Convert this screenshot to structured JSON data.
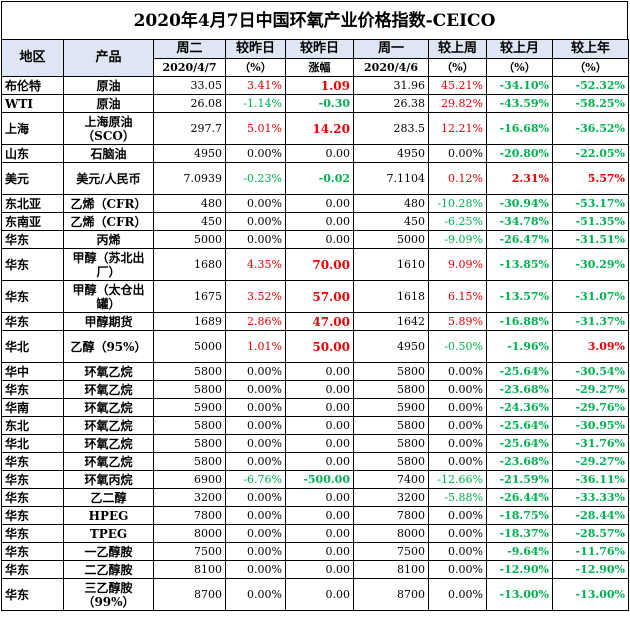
{
  "title": "2020年4月7日中国环氧产业价格指数-CEICO",
  "headers": {
    "region": "地区",
    "product": "产品",
    "today": "周二",
    "today_date": "2020/4/7",
    "chg_pct": "较昨日",
    "chg_pct_unit": "（%）",
    "chg_amt": "较昨日",
    "chg_amt_unit": "涨幅",
    "prev": "周一",
    "prev_date": "2020/4/6",
    "wk": "较上周",
    "wk_unit": "（%）",
    "mo": "较上月",
    "mo_unit": "（%）",
    "yr": "较上年",
    "yr_unit": "（%）"
  },
  "rows": [
    {
      "region": "布伦特",
      "product": "原油",
      "today": "33.05",
      "chg_pct": "3.41%",
      "chg_amt": "1.09",
      "prev": "31.96",
      "wk": "45.21%",
      "mo": "-34.10%",
      "yr": "-52.32%",
      "tall": false
    },
    {
      "region": "WTI",
      "product": "原油",
      "today": "26.08",
      "chg_pct": "-1.14%",
      "chg_amt": "-0.30",
      "prev": "26.38",
      "wk": "29.82%",
      "mo": "-43.59%",
      "yr": "-58.25%",
      "tall": false
    },
    {
      "region": "上海",
      "product": "上海原油（SCO）",
      "today": "297.7",
      "chg_pct": "5.01%",
      "chg_amt": "14.20",
      "prev": "283.5",
      "wk": "12.21%",
      "mo": "-16.68%",
      "yr": "-36.52%",
      "tall": true
    },
    {
      "region": "山东",
      "product": "石脑油",
      "today": "4950",
      "chg_pct": "0.00%",
      "chg_amt": "0.00",
      "prev": "4950",
      "wk": "0.00%",
      "mo": "-20.80%",
      "yr": "-22.05%",
      "tall": false
    },
    {
      "region": "美元",
      "product": "美元/人民币",
      "today": "7.0939",
      "chg_pct": "-0.23%",
      "chg_amt": "-0.02",
      "prev": "7.1104",
      "wk": "0.12%",
      "mo": "2.31%",
      "yr": "5.57%",
      "tall": true
    },
    {
      "region": "东北亚",
      "product": "乙烯（CFR）",
      "today": "480",
      "chg_pct": "0.00%",
      "chg_amt": "0.00",
      "prev": "480",
      "wk": "-10.28%",
      "mo": "-30.94%",
      "yr": "-53.17%",
      "tall": false
    },
    {
      "region": "东南亚",
      "product": "乙烯（CFR）",
      "today": "450",
      "chg_pct": "0.00%",
      "chg_amt": "0.00",
      "prev": "450",
      "wk": "-6.25%",
      "mo": "-34.78%",
      "yr": "-51.35%",
      "tall": false
    },
    {
      "region": "华东",
      "product": "丙烯",
      "today": "5000",
      "chg_pct": "0.00%",
      "chg_amt": "0.00",
      "prev": "5000",
      "wk": "-9.09%",
      "mo": "-26.47%",
      "yr": "-31.51%",
      "tall": false
    },
    {
      "region": "华东",
      "product": "甲醇（苏北出厂）",
      "today": "1680",
      "chg_pct": "4.35%",
      "chg_amt": "70.00",
      "prev": "1610",
      "wk": "9.09%",
      "mo": "-13.85%",
      "yr": "-30.29%",
      "tall": true
    },
    {
      "region": "华东",
      "product": "甲醇（太仓出罐）",
      "today": "1675",
      "chg_pct": "3.52%",
      "chg_amt": "57.00",
      "prev": "1618",
      "wk": "6.15%",
      "mo": "-13.57%",
      "yr": "-31.07%",
      "tall": true
    },
    {
      "region": "华东",
      "product": "甲醇期货",
      "today": "1689",
      "chg_pct": "2.86%",
      "chg_amt": "47.00",
      "prev": "1642",
      "wk": "5.89%",
      "mo": "-16.88%",
      "yr": "-31.37%",
      "tall": false
    },
    {
      "region": "华北",
      "product": "乙醇（95%）",
      "today": "5000",
      "chg_pct": "1.01%",
      "chg_amt": "50.00",
      "prev": "4950",
      "wk": "-0.50%",
      "mo": "-1.96%",
      "yr": "3.09%",
      "tall": true
    },
    {
      "region": "华中",
      "product": "环氧乙烷",
      "today": "5800",
      "chg_pct": "0.00%",
      "chg_amt": "0.00",
      "prev": "5800",
      "wk": "0.00%",
      "mo": "-25.64%",
      "yr": "-30.54%",
      "tall": false
    },
    {
      "region": "华东",
      "product": "环氧乙烷",
      "today": "5800",
      "chg_pct": "0.00%",
      "chg_amt": "0.00",
      "prev": "5800",
      "wk": "0.00%",
      "mo": "-23.68%",
      "yr": "-29.27%",
      "tall": false
    },
    {
      "region": "华南",
      "product": "环氧乙烷",
      "today": "5900",
      "chg_pct": "0.00%",
      "chg_amt": "0.00",
      "prev": "5900",
      "wk": "0.00%",
      "mo": "-24.36%",
      "yr": "-29.76%",
      "tall": false
    },
    {
      "region": "东北",
      "product": "环氧乙烷",
      "today": "5800",
      "chg_pct": "0.00%",
      "chg_amt": "0.00",
      "prev": "5800",
      "wk": "0.00%",
      "mo": "-25.64%",
      "yr": "-30.95%",
      "tall": false
    },
    {
      "region": "华北",
      "product": "环氧乙烷",
      "today": "5800",
      "chg_pct": "0.00%",
      "chg_amt": "0.00",
      "prev": "5800",
      "wk": "0.00%",
      "mo": "-25.64%",
      "yr": "-31.76%",
      "tall": false
    },
    {
      "region": "华东",
      "product": "环氧乙烷",
      "today": "5800",
      "chg_pct": "0.00%",
      "chg_amt": "0.00",
      "prev": "5800",
      "wk": "0.00%",
      "mo": "-23.68%",
      "yr": "-29.27%",
      "tall": false
    },
    {
      "region": "华东",
      "product": "环氧丙烷",
      "today": "6900",
      "chg_pct": "-6.76%",
      "chg_amt": "-500.00",
      "prev": "7400",
      "wk": "-12.66%",
      "mo": "-21.59%",
      "yr": "-36.11%",
      "tall": false
    },
    {
      "region": "华东",
      "product": "乙二醇",
      "today": "3200",
      "chg_pct": "0.00%",
      "chg_amt": "0.00",
      "prev": "3200",
      "wk": "-5.88%",
      "mo": "-26.44%",
      "yr": "-33.33%",
      "tall": false
    },
    {
      "region": "华东",
      "product": "HPEG",
      "today": "7800",
      "chg_pct": "0.00%",
      "chg_amt": "0.00",
      "prev": "7800",
      "wk": "0.00%",
      "mo": "-18.75%",
      "yr": "-28.44%",
      "tall": false
    },
    {
      "region": "华东",
      "product": "TPEG",
      "today": "8000",
      "chg_pct": "0.00%",
      "chg_amt": "0.00",
      "prev": "8000",
      "wk": "0.00%",
      "mo": "-18.37%",
      "yr": "-28.57%",
      "tall": false
    },
    {
      "region": "华东",
      "product": "一乙醇胺",
      "today": "7500",
      "chg_pct": "0.00%",
      "chg_amt": "0.00",
      "prev": "7500",
      "wk": "0.00%",
      "mo": "-9.64%",
      "yr": "-11.76%",
      "tall": false
    },
    {
      "region": "华东",
      "product": "二乙醇胺",
      "today": "8100",
      "chg_pct": "0.00%",
      "chg_amt": "0.00",
      "prev": "8100",
      "wk": "0.00%",
      "mo": "-12.90%",
      "yr": "-12.90%",
      "tall": false
    },
    {
      "region": "华东",
      "product": "三乙醇胺（99%）",
      "today": "8700",
      "chg_pct": "0.00%",
      "chg_amt": "0.00",
      "prev": "8700",
      "wk": "0.00%",
      "mo": "-13.00%",
      "yr": "-13.00%",
      "tall": true
    }
  ],
  "colors": {
    "up": "#e60000",
    "down": "#00b050",
    "flat": "#000000",
    "header_bg": "#dde6f2"
  }
}
